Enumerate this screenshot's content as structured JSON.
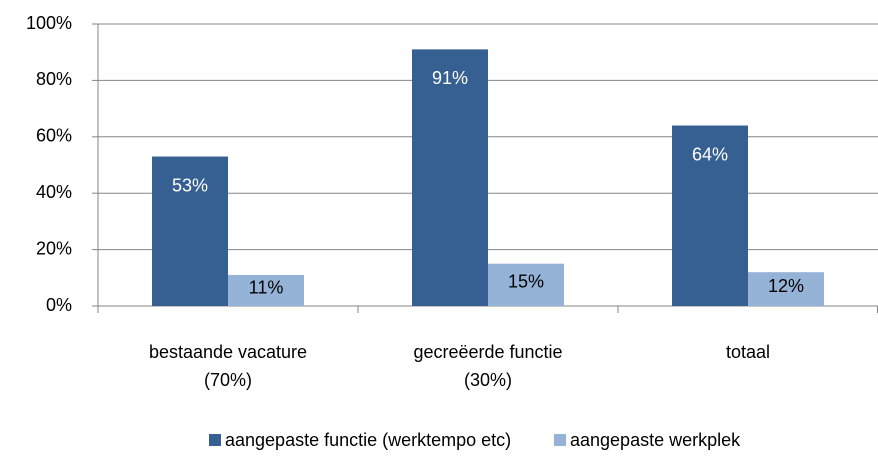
{
  "chart_data": {
    "type": "bar",
    "categories": [
      "bestaande vacature\n(70%)",
      "gecreëerde functie\n(30%)",
      "totaal"
    ],
    "series": [
      {
        "name": "aangepaste functie (werktempo etc)",
        "color": "#376092",
        "values": [
          53,
          91,
          64
        ],
        "value_labels": [
          "53%",
          "91%",
          "64%"
        ]
      },
      {
        "name": "aangepaste werkplek",
        "color": "#95b3d7",
        "values": [
          11,
          15,
          12
        ],
        "value_labels": [
          "11%",
          "15%",
          "12%"
        ]
      }
    ],
    "ylim": [
      0,
      100
    ],
    "yticks": [
      {
        "value": 0,
        "label": "0%"
      },
      {
        "value": 20,
        "label": "20%"
      },
      {
        "value": 40,
        "label": "40%"
      },
      {
        "value": 60,
        "label": "60%"
      },
      {
        "value": 80,
        "label": "80%"
      },
      {
        "value": 100,
        "label": "100%"
      }
    ],
    "grid": true,
    "legend": "bottom"
  }
}
